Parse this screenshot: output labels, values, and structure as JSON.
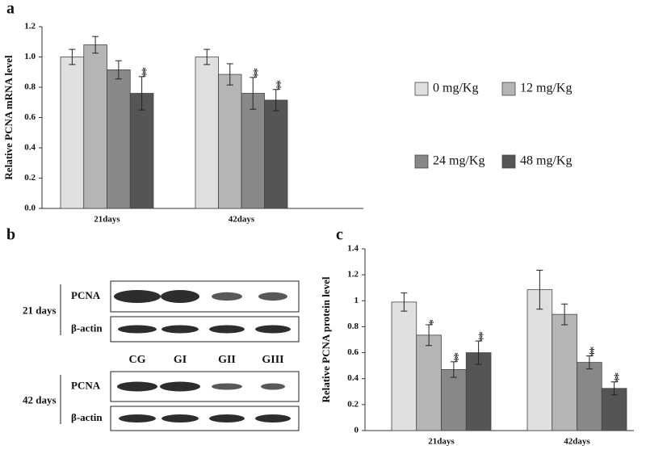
{
  "chart_data": [
    {
      "type": "bar",
      "panel_label": "a",
      "ylabel": "Relative PCNA mRNA level",
      "categories": [
        "21days",
        "42days"
      ],
      "series": [
        {
          "name": "0 mg/Kg",
          "color": "#e0e0e0",
          "values": [
            1.0,
            1.0
          ],
          "errors": [
            0.05,
            0.05
          ],
          "stars": [
            null,
            null
          ]
        },
        {
          "name": "12 mg/Kg",
          "color": "#b5b5b5",
          "values": [
            1.08,
            0.885
          ],
          "errors": [
            0.055,
            0.07
          ],
          "stars": [
            null,
            null
          ]
        },
        {
          "name": "24 mg/Kg",
          "color": "#888888",
          "values": [
            0.915,
            0.76
          ],
          "errors": [
            0.06,
            0.105
          ],
          "stars": [
            null,
            "**"
          ]
        },
        {
          "name": "48 mg/Kg",
          "color": "#555555",
          "values": [
            0.76,
            0.715
          ],
          "errors": [
            0.11,
            0.07
          ],
          "stars": [
            "**",
            "**"
          ]
        }
      ],
      "ylim": [
        0,
        1.2
      ],
      "yticks": [
        {
          "value": 0,
          "label": "0.0"
        },
        0.2,
        0.4,
        0.6,
        0.8,
        {
          "value": 1,
          "label": "1.0"
        },
        1.2
      ]
    },
    {
      "type": "bar",
      "panel_label": "c",
      "ylabel": "Relative PCNA protein level",
      "categories": [
        "21days",
        "42days"
      ],
      "series": [
        {
          "color": "#e0e0e0",
          "values": [
            0.99,
            1.085
          ],
          "errors": [
            0.07,
            0.15
          ],
          "stars": [
            null,
            null
          ]
        },
        {
          "color": "#b5b5b5",
          "values": [
            0.735,
            0.895
          ],
          "errors": [
            0.08,
            0.08
          ],
          "stars": [
            "*",
            null
          ]
        },
        {
          "color": "#888888",
          "values": [
            0.47,
            0.525
          ],
          "errors": [
            0.06,
            0.05
          ],
          "stars": [
            "**",
            "**"
          ]
        },
        {
          "color": "#555555",
          "values": [
            0.6,
            0.325
          ],
          "errors": [
            0.09,
            0.05
          ],
          "stars": [
            "**",
            "**"
          ]
        }
      ],
      "ylim": [
        0,
        1.4
      ],
      "yticks": [
        0,
        0.2,
        0.4,
        0.6,
        0.8,
        1,
        1.2,
        1.4
      ]
    }
  ],
  "blot": {
    "panel_label": "b",
    "groups": [
      {
        "label": "21 days",
        "rows": [
          "PCNA",
          "β-actin"
        ]
      },
      {
        "label": "42 days",
        "rows": [
          "PCNA",
          "β-actin"
        ]
      }
    ],
    "lanes": [
      "CG",
      "GI",
      "GII",
      "GIII"
    ]
  }
}
